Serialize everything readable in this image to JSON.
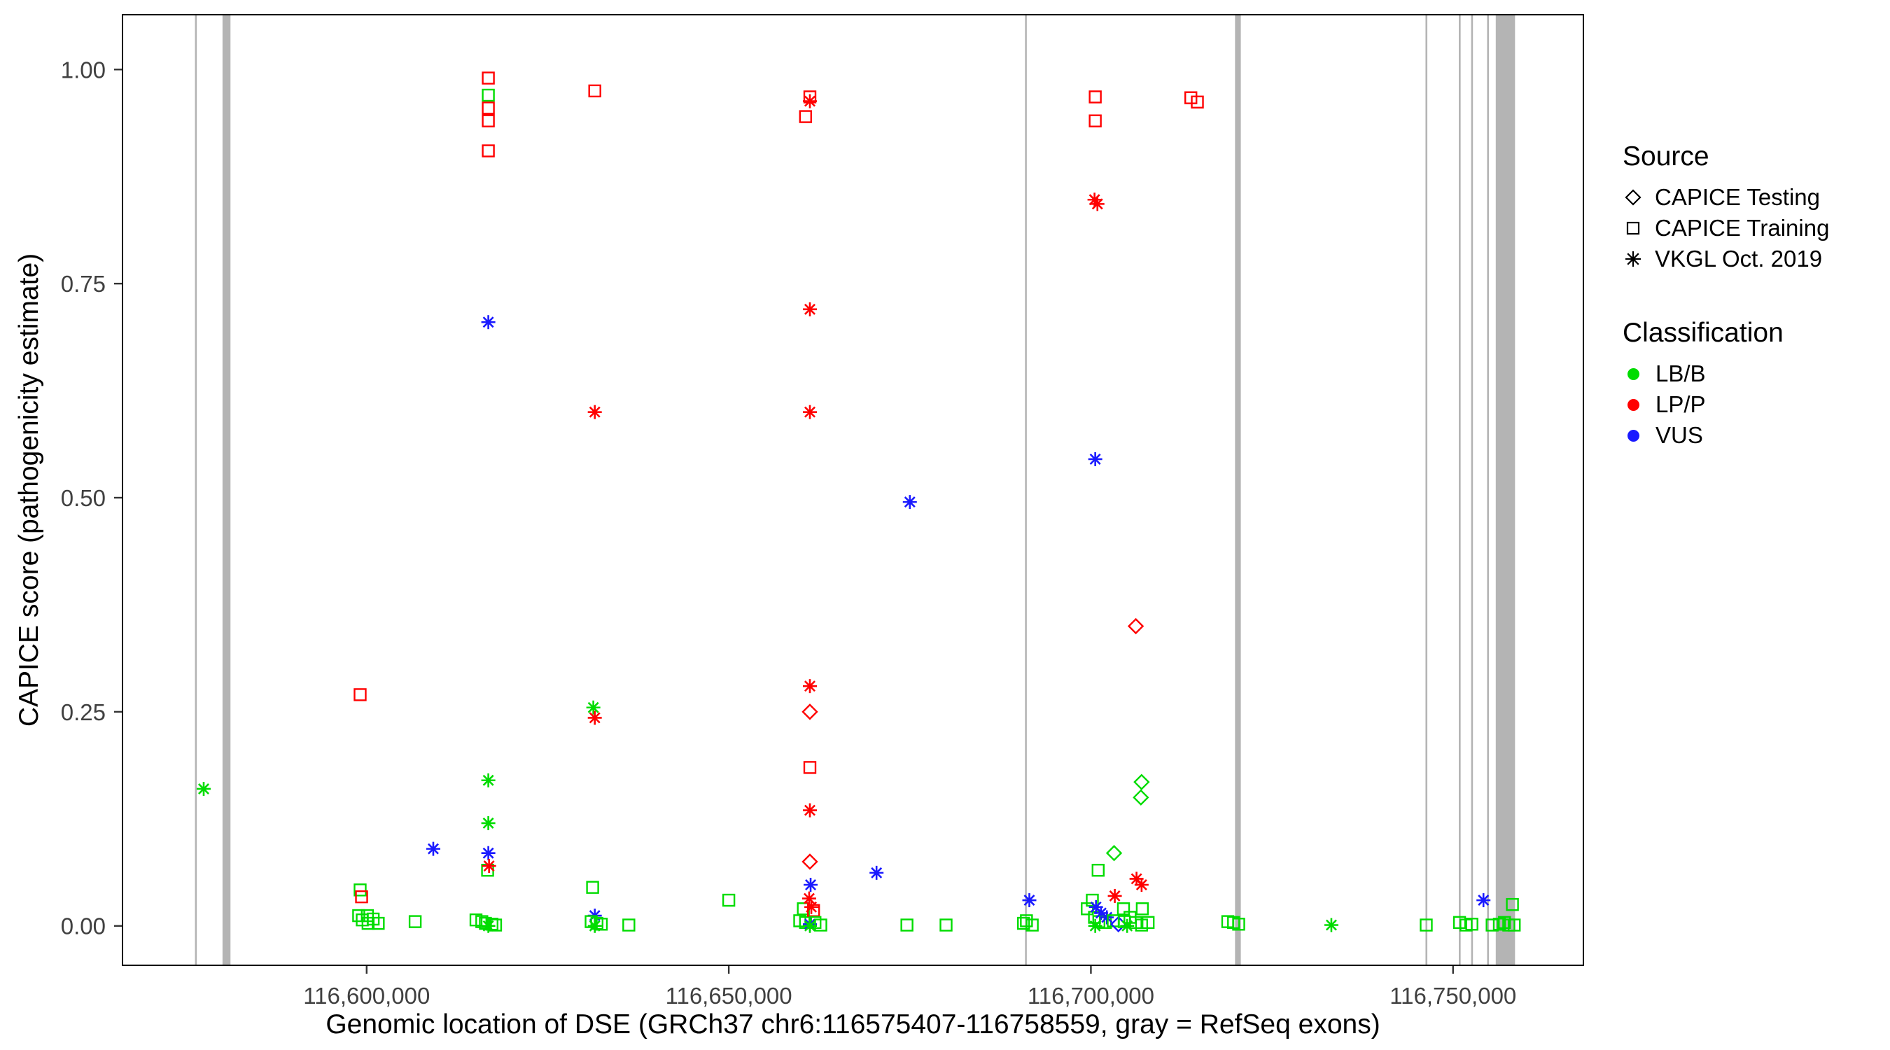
{
  "chart_data": {
    "type": "scatter",
    "title": "",
    "xlabel": "Genomic location of DSE (GRCh37 chr6:116575407-116758559, gray = RefSeq exons)",
    "ylabel": "CAPICE score (pathogenicity estimate)",
    "x_domain": [
      116566290,
      116768000
    ],
    "y_domain": [
      -0.046,
      1.064
    ],
    "grid": "off",
    "legend_position": "right",
    "x_ticks": [
      {
        "value": 116600000,
        "label": "116,600,000"
      },
      {
        "value": 116650000,
        "label": "116,650,000"
      },
      {
        "value": 116700000,
        "label": "116,700,000"
      },
      {
        "value": 116750000,
        "label": "116,750,000"
      }
    ],
    "y_ticks": [
      {
        "value": 0.0,
        "label": "0.00"
      },
      {
        "value": 0.25,
        "label": "0.25"
      },
      {
        "value": 0.5,
        "label": "0.50"
      },
      {
        "value": 0.75,
        "label": "0.75"
      },
      {
        "value": 1.0,
        "label": "1.00"
      }
    ],
    "colors": {
      "LBB": "#00DC00",
      "LPP": "#FF0000",
      "VUS": "#1A1AFF",
      "exon": "#B4B4B4",
      "axis": "#333333"
    },
    "shapes": {
      "train": "square",
      "test": "diamond",
      "vkgl": "asterisk"
    },
    "exons": [
      [
        116576300,
        116576550
      ],
      [
        116580100,
        116581200
      ],
      [
        116690900,
        116691150
      ],
      [
        116719900,
        116720700
      ],
      [
        116746200,
        116746450
      ],
      [
        116750800,
        116751050
      ],
      [
        116752500,
        116752750
      ],
      [
        116754700,
        116754950
      ],
      [
        116755900,
        116758559
      ]
    ],
    "points": [
      [
        116577500,
        0.16,
        "vkgl",
        "LBB"
      ],
      [
        116599100,
        0.27,
        "train",
        "LPP"
      ],
      [
        116599100,
        0.042,
        "train",
        "LBB"
      ],
      [
        116599300,
        0.034,
        "train",
        "LPP"
      ],
      [
        116598900,
        0.012,
        "train",
        "LBB"
      ],
      [
        116599400,
        0.007,
        "train",
        "LBB"
      ],
      [
        116600100,
        0.012,
        "train",
        "LBB"
      ],
      [
        116600200,
        0.003,
        "train",
        "LBB"
      ],
      [
        116600900,
        0.008,
        "train",
        "LBB"
      ],
      [
        116601600,
        0.003,
        "train",
        "LBB"
      ],
      [
        116606700,
        0.005,
        "train",
        "LBB"
      ],
      [
        116609200,
        0.09,
        "vkgl",
        "VUS"
      ],
      [
        116615100,
        0.007,
        "train",
        "LBB"
      ],
      [
        116615900,
        0.005,
        "train",
        "LBB"
      ],
      [
        116616400,
        0.003,
        "train",
        "LBB"
      ],
      [
        116616700,
        0.065,
        "train",
        "LBB"
      ],
      [
        116616800,
        0.99,
        "train",
        "LPP"
      ],
      [
        116616800,
        0.97,
        "train",
        "LBB"
      ],
      [
        116616800,
        0.955,
        "train",
        "LPP"
      ],
      [
        116616800,
        0.94,
        "train",
        "LPP"
      ],
      [
        116616800,
        0.905,
        "train",
        "LPP"
      ],
      [
        116616800,
        0.705,
        "vkgl",
        "VUS"
      ],
      [
        116616800,
        0.17,
        "vkgl",
        "LBB"
      ],
      [
        116616800,
        0.12,
        "vkgl",
        "LBB"
      ],
      [
        116616800,
        0.085,
        "vkgl",
        "VUS"
      ],
      [
        116616900,
        0.07,
        "vkgl",
        "LPP"
      ],
      [
        116616800,
        0.0,
        "vkgl",
        "LBB"
      ],
      [
        116617300,
        0.002,
        "train",
        "LBB"
      ],
      [
        116617800,
        0.001,
        "train",
        "LBB"
      ],
      [
        116631500,
        0.975,
        "train",
        "LPP"
      ],
      [
        116631500,
        0.6,
        "vkgl",
        "LPP"
      ],
      [
        116631300,
        0.255,
        "vkgl",
        "LBB"
      ],
      [
        116631500,
        0.243,
        "vkgl",
        "LPP"
      ],
      [
        116631200,
        0.045,
        "train",
        "LBB"
      ],
      [
        116631500,
        0.012,
        "vkgl",
        "VUS"
      ],
      [
        116631000,
        0.005,
        "train",
        "LBB"
      ],
      [
        116631800,
        0.003,
        "train",
        "LBB"
      ],
      [
        116632400,
        0.002,
        "train",
        "LBB"
      ],
      [
        116631500,
        0.0,
        "vkgl",
        "LBB"
      ],
      [
        116636200,
        0.001,
        "train",
        "LBB"
      ],
      [
        116650000,
        0.03,
        "train",
        "LBB"
      ],
      [
        116659800,
        0.006,
        "train",
        "LBB"
      ],
      [
        116660300,
        0.02,
        "train",
        "LBB"
      ],
      [
        116660600,
        0.945,
        "train",
        "LPP"
      ],
      [
        116660600,
        0.004,
        "train",
        "LBB"
      ],
      [
        116661200,
        0.968,
        "train",
        "LPP"
      ],
      [
        116661200,
        0.963,
        "vkgl",
        "LPP"
      ],
      [
        116661200,
        0.72,
        "vkgl",
        "LPP"
      ],
      [
        116661200,
        0.6,
        "vkgl",
        "LPP"
      ],
      [
        116661200,
        0.28,
        "vkgl",
        "LPP"
      ],
      [
        116661200,
        0.25,
        "test",
        "LPP"
      ],
      [
        116661200,
        0.185,
        "train",
        "LPP"
      ],
      [
        116661200,
        0.135,
        "vkgl",
        "LPP"
      ],
      [
        116661200,
        0.075,
        "test",
        "LPP"
      ],
      [
        116661300,
        0.048,
        "vkgl",
        "VUS"
      ],
      [
        116661100,
        0.032,
        "vkgl",
        "LPP"
      ],
      [
        116661400,
        0.022,
        "vkgl",
        "LPP"
      ],
      [
        116661700,
        0.018,
        "train",
        "LPP"
      ],
      [
        116661200,
        0.002,
        "vkgl",
        "VUS"
      ],
      [
        116661200,
        0.0,
        "vkgl",
        "LBB"
      ],
      [
        116661900,
        0.004,
        "train",
        "LBB"
      ],
      [
        116662700,
        0.001,
        "train",
        "LBB"
      ],
      [
        116670400,
        0.062,
        "vkgl",
        "VUS"
      ],
      [
        116674600,
        0.001,
        "train",
        "LBB"
      ],
      [
        116675000,
        0.495,
        "vkgl",
        "VUS"
      ],
      [
        116680000,
        0.001,
        "train",
        "LBB"
      ],
      [
        116690700,
        0.003,
        "train",
        "LBB"
      ],
      [
        116691100,
        0.006,
        "train",
        "LBB"
      ],
      [
        116691500,
        0.03,
        "vkgl",
        "VUS"
      ],
      [
        116691900,
        0.001,
        "train",
        "LBB"
      ],
      [
        116699500,
        0.02,
        "train",
        "LBB"
      ],
      [
        116700200,
        0.03,
        "train",
        "LBB"
      ],
      [
        116700500,
        0.848,
        "vkgl",
        "LPP"
      ],
      [
        116700900,
        0.843,
        "vkgl",
        "LPP"
      ],
      [
        116700600,
        0.968,
        "train",
        "LPP"
      ],
      [
        116700600,
        0.94,
        "train",
        "LPP"
      ],
      [
        116700600,
        0.545,
        "vkgl",
        "VUS"
      ],
      [
        116700500,
        0.01,
        "train",
        "LBB"
      ],
      [
        116700700,
        0.022,
        "vkgl",
        "VUS"
      ],
      [
        116700600,
        0.0,
        "vkgl",
        "LBB"
      ],
      [
        116701000,
        0.065,
        "train",
        "LBB"
      ],
      [
        116701100,
        0.005,
        "train",
        "LBB"
      ],
      [
        116701400,
        0.015,
        "vkgl",
        "VUS"
      ],
      [
        116702000,
        0.004,
        "train",
        "LBB"
      ],
      [
        116702200,
        0.01,
        "vkgl",
        "VUS"
      ],
      [
        116703100,
        0.006,
        "train",
        "LBB"
      ],
      [
        116703200,
        0.085,
        "test",
        "LBB"
      ],
      [
        116703300,
        0.035,
        "vkgl",
        "LPP"
      ],
      [
        116703800,
        0.002,
        "test",
        "VUS"
      ],
      [
        116704500,
        0.02,
        "train",
        "LBB"
      ],
      [
        116704600,
        0.005,
        "train",
        "LBB"
      ],
      [
        116705000,
        0.0,
        "vkgl",
        "LBB"
      ],
      [
        116705400,
        0.01,
        "train",
        "LBB"
      ],
      [
        116706200,
        0.35,
        "test",
        "LPP"
      ],
      [
        116706200,
        0.004,
        "train",
        "LBB"
      ],
      [
        116706300,
        0.055,
        "vkgl",
        "LPP"
      ],
      [
        116706900,
        0.15,
        "test",
        "LBB"
      ],
      [
        116707000,
        0.168,
        "test",
        "LBB"
      ],
      [
        116707000,
        0.048,
        "vkgl",
        "LPP"
      ],
      [
        116707100,
        0.02,
        "train",
        "LBB"
      ],
      [
        116707000,
        0.001,
        "train",
        "LBB"
      ],
      [
        116707900,
        0.004,
        "train",
        "LBB"
      ],
      [
        116713800,
        0.967,
        "train",
        "LPP"
      ],
      [
        116714700,
        0.962,
        "train",
        "LPP"
      ],
      [
        116718900,
        0.005,
        "train",
        "LBB"
      ],
      [
        116719700,
        0.004,
        "train",
        "LBB"
      ],
      [
        116720400,
        0.002,
        "train",
        "LBB"
      ],
      [
        116733200,
        0.001,
        "vkgl",
        "LBB"
      ],
      [
        116746300,
        0.001,
        "train",
        "LBB"
      ],
      [
        116750900,
        0.004,
        "train",
        "LBB"
      ],
      [
        116751800,
        0.001,
        "train",
        "LBB"
      ],
      [
        116752600,
        0.002,
        "train",
        "LBB"
      ],
      [
        116754200,
        0.03,
        "vkgl",
        "VUS"
      ],
      [
        116755400,
        0.001,
        "train",
        "LBB"
      ],
      [
        116756400,
        0.002,
        "train",
        "LBB"
      ],
      [
        116757100,
        0.004,
        "train",
        "LBB"
      ],
      [
        116757700,
        0.001,
        "train",
        "LBB"
      ],
      [
        116758200,
        0.025,
        "train",
        "LBB"
      ],
      [
        116758450,
        0.001,
        "train",
        "LBB"
      ]
    ]
  },
  "axes": {
    "x_title": "Genomic location of DSE (GRCh37 chr6:116575407-116758559, gray = RefSeq exons)",
    "y_title": "CAPICE score (pathogenicity estimate)"
  },
  "legend": {
    "source": {
      "title": "Source",
      "items": [
        {
          "label": "CAPICE Testing",
          "shape": "diamond"
        },
        {
          "label": "CAPICE Training",
          "shape": "square"
        },
        {
          "label": "VKGL Oct. 2019",
          "shape": "asterisk"
        }
      ]
    },
    "classification": {
      "title": "Classification",
      "items": [
        {
          "label": "LB/B",
          "key": "LBB"
        },
        {
          "label": "LP/P",
          "key": "LPP"
        },
        {
          "label": "VUS",
          "key": "VUS"
        }
      ]
    }
  }
}
